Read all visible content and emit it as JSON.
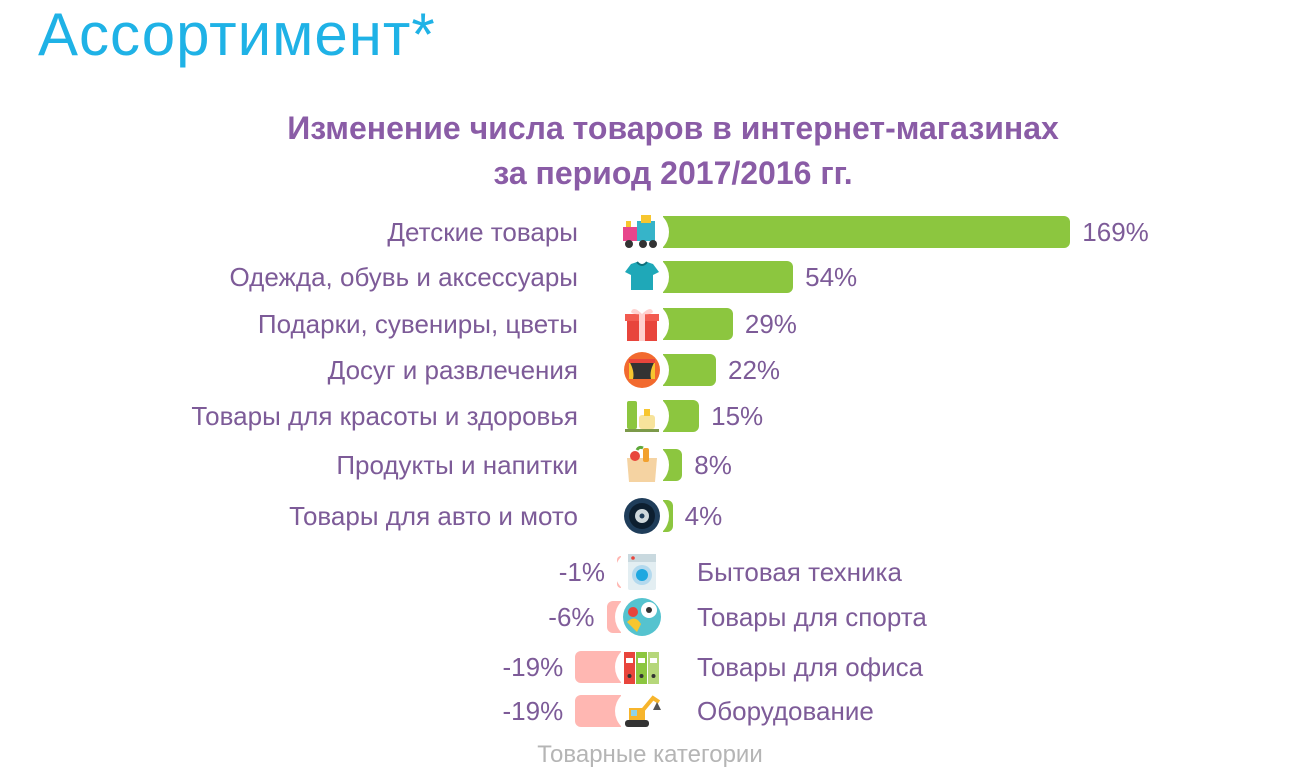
{
  "page_title": "Ассортимент*",
  "chart_title_line1": "Изменение числа товаров в интернет-магазинах",
  "chart_title_line2": "за период 2017/2016 гг.",
  "axis_caption": "Товарные категории",
  "colors": {
    "title": "#1fb2e6",
    "chart_title": "#8a5ca6",
    "labels": "#7d5b98",
    "positive_bar": "#8cc63f",
    "negative_bar": "#ffb7b2"
  },
  "chart_data": {
    "type": "bar",
    "orientation": "horizontal",
    "title": "Изменение числа товаров в интернет-магазинах за период 2017/2016 гг.",
    "xlabel": "Товарные категории",
    "unit": "%",
    "categories": [
      "Детские товары",
      "Одежда, обувь и аксессуары",
      "Подарки, сувениры, цветы",
      "Досуг и развлечения",
      "Товары для красоты и здоровья",
      "Продукты и напитки",
      "Товары для авто и мото",
      "Бытовая техника",
      "Товары для спорта",
      "Товары для офиса",
      "Оборудование"
    ],
    "values": [
      169,
      54,
      29,
      22,
      15,
      8,
      4,
      -1,
      -6,
      -19,
      -19
    ],
    "value_labels": [
      "169%",
      "54%",
      "29%",
      "22%",
      "15%",
      "8%",
      "4%",
      "-1%",
      "-6%",
      "-19%",
      "-19%"
    ],
    "icons": [
      "toy-train-icon",
      "tshirt-icon",
      "gift-box-icon",
      "theater-stage-icon",
      "cosmetics-icon",
      "grocery-bag-icon",
      "car-tire-icon",
      "washing-machine-icon",
      "sports-balls-icon",
      "office-binders-icon",
      "excavator-icon"
    ]
  }
}
